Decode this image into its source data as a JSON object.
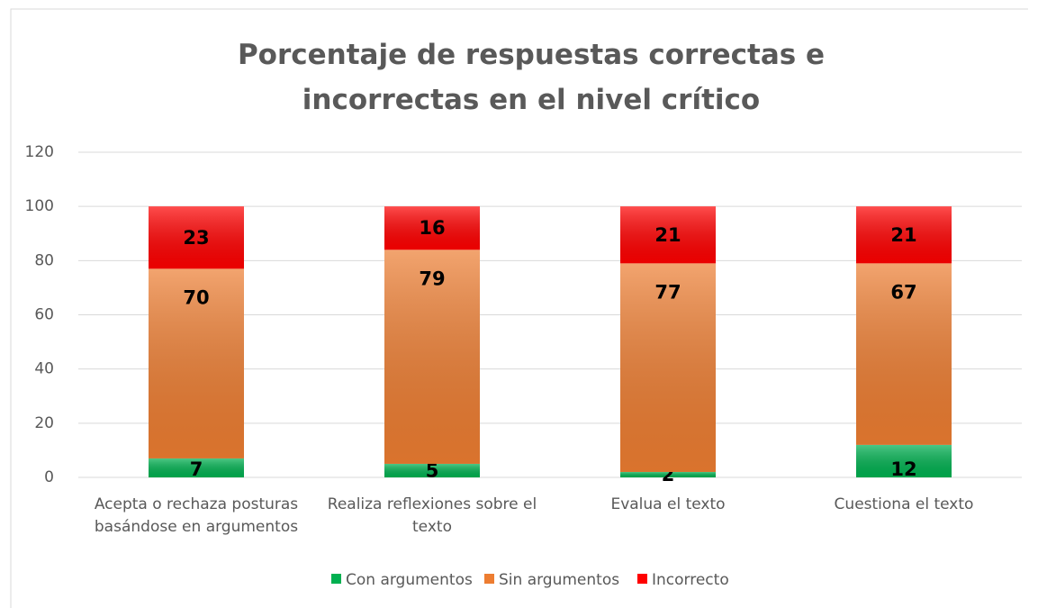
{
  "chart_data": {
    "type": "stacked_bar",
    "title": "Porcentaje de respuestas  correctas e incorrectas en el nivel crítico",
    "categories": [
      "Acepta o rechaza posturas basándose en argumentos",
      "Realiza reflexiones sobre el texto",
      "Evalua el texto",
      "Cuestiona el texto"
    ],
    "series": [
      {
        "name": "Con argumentos",
        "color": "#00b050",
        "values": [
          7,
          5,
          2,
          12
        ]
      },
      {
        "name": "Sin argumentos",
        "color": "#ed7d31",
        "values": [
          70,
          79,
          77,
          67
        ]
      },
      {
        "name": "Incorrecto",
        "color": "#ff0000",
        "values": [
          23,
          16,
          21,
          21
        ]
      }
    ],
    "ylim": [
      0,
      120
    ],
    "yticks": [
      0,
      20,
      40,
      60,
      80,
      100,
      120
    ],
    "grid": true,
    "legend": "bottom"
  }
}
